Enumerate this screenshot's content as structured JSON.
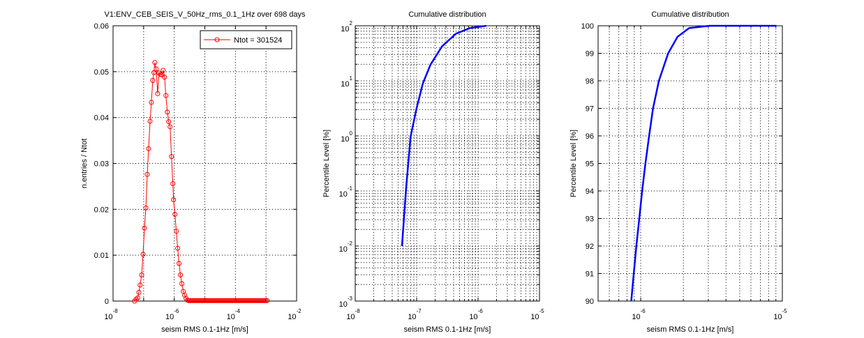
{
  "chart_data": [
    {
      "type": "line",
      "title": "V1:ENV_CEB_SEIS_V_50Hz_rms_0.1_1Hz over 698 days",
      "xlabel": "seism RMS 0.1-1Hz [m/s]",
      "ylabel": "n.entries / Ntot",
      "xscale": "log",
      "xlim_log10": [
        -8,
        -2
      ],
      "ylim": [
        0,
        0.06
      ],
      "x_tick_base": "10",
      "x_ticks_log10": [
        "-8",
        "-6",
        "-4",
        "-2"
      ],
      "y_ticks": [
        "0",
        "0.01",
        "0.02",
        "0.03",
        "0.04",
        "0.05",
        "0.06"
      ],
      "grid": true,
      "legend": {
        "label": "Ntot = 301524",
        "placement": "top-right"
      },
      "color": "#ff0000",
      "marker": "circle",
      "series": [
        {
          "name": "Ntot = 301524",
          "x_log10": [
            -7.298,
            -7.245,
            -7.192,
            -7.155,
            -7.117,
            -7.064,
            -7.019,
            -6.974,
            -6.928,
            -6.883,
            -6.838,
            -6.792,
            -6.747,
            -6.702,
            -6.664,
            -6.634,
            -6.589,
            -6.543,
            -6.498,
            -6.453,
            -6.408,
            -6.362,
            -6.317,
            -6.272,
            -6.226,
            -6.181,
            -6.136,
            -6.091,
            -6.045,
            -6.023,
            -5.977,
            -5.932,
            -5.887,
            -5.842,
            -5.796,
            -5.751,
            -5.706,
            -5.66,
            -5.615,
            -5.57
          ],
          "y": [
            0,
            0.0004,
            0.0007,
            0.0019,
            0.0035,
            0.0057,
            0.0102,
            0.0159,
            0.0203,
            0.0276,
            0.0332,
            0.0392,
            0.0433,
            0.0481,
            0.0498,
            0.052,
            0.0506,
            0.0452,
            0.0497,
            0.0494,
            0.0493,
            0.0503,
            0.0488,
            0.0448,
            0.0412,
            0.0391,
            0.038,
            0.0315,
            0.0256,
            0.0221,
            0.0189,
            0.0152,
            0.0115,
            0.0082,
            0.0057,
            0.0038,
            0.0021,
            0.0013,
            0.0006,
            0.0002
          ],
          "tail_x_log10_range": [
            -5.53,
            -2.93
          ],
          "tail_step_log10": 0.045,
          "tail_y": 0.0001
        }
      ]
    },
    {
      "type": "line",
      "title": "Cumulative distribution",
      "xlabel": "seism RMS 0.1-1Hz [m/s]",
      "ylabel": "Percentile Level [%]",
      "xscale": "log",
      "yscale": "log",
      "xlim_log10": [
        -8,
        -5
      ],
      "ylim_log10": [
        -3,
        2
      ],
      "x_tick_base": "10",
      "x_ticks_log10": [
        "-8",
        "-7",
        "-6",
        "-5"
      ],
      "y_tick_base": "10",
      "y_ticks_log10": [
        "-3",
        "-2",
        "-1",
        "0",
        "1",
        "2"
      ],
      "grid": true,
      "color": "#0000ff",
      "series": [
        {
          "x_log10": [
            -7.239,
            -7.174,
            -7.099,
            -7.003,
            -6.9,
            -6.776,
            -6.587,
            -6.36,
            -6.13,
            -5.867
          ],
          "y_log10": [
            -2.0,
            -0.98,
            -0.017,
            0.49,
            0.95,
            1.29,
            1.625,
            1.857,
            1.96,
            2.0
          ]
        }
      ]
    },
    {
      "type": "line",
      "title": "Cumulative distribution",
      "xlabel": "seism RMS 0.1-1Hz [m/s]",
      "ylabel": "Percentile Level [%]",
      "xscale": "log",
      "xlim_log10": [
        -6.301,
        -5
      ],
      "ylim": [
        90,
        100
      ],
      "x_tick_base": "10",
      "x_ticks_log10": [
        "-6",
        "-5"
      ],
      "y_ticks": [
        "90",
        "91",
        "92",
        "93",
        "94",
        "95",
        "96",
        "97",
        "98",
        "99",
        "100"
      ],
      "grid": true,
      "color": "#0000ff",
      "series": [
        {
          "x_log10": [
            -6.067,
            -6.049,
            -6.031,
            -6.01,
            -5.99,
            -5.967,
            -5.941,
            -5.913,
            -5.872,
            -5.806,
            -5.74,
            -5.658,
            -5.51,
            -5.042
          ],
          "y": [
            90,
            91,
            92,
            93,
            94,
            95,
            96,
            97,
            98,
            99,
            99.6,
            99.92,
            100,
            100
          ]
        }
      ]
    }
  ]
}
